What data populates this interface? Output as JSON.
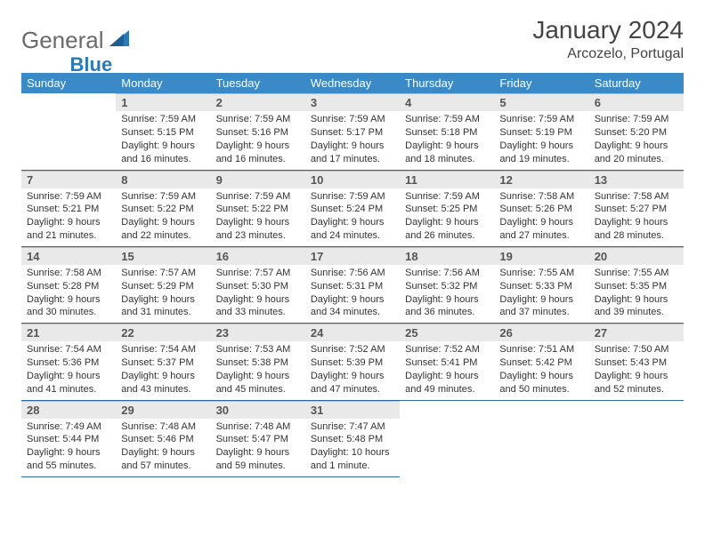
{
  "logo": {
    "text1": "General",
    "text2": "Blue"
  },
  "title": {
    "month": "January 2024",
    "location": "Arcozelo, Portugal"
  },
  "weekdays": [
    "Sunday",
    "Monday",
    "Tuesday",
    "Wednesday",
    "Thursday",
    "Friday",
    "Saturday"
  ],
  "colors": {
    "header_bg": "#3a8ac7",
    "row_border": "#2a6aa0",
    "daynum_bg": "#e9e9e9",
    "logo_blue": "#2a7ab8",
    "logo_gray": "#6a6a6a"
  },
  "weeks": [
    [
      null,
      {
        "n": "1",
        "sunrise": "Sunrise: 7:59 AM",
        "sunset": "Sunset: 5:15 PM",
        "d1": "Daylight: 9 hours",
        "d2": "and 16 minutes."
      },
      {
        "n": "2",
        "sunrise": "Sunrise: 7:59 AM",
        "sunset": "Sunset: 5:16 PM",
        "d1": "Daylight: 9 hours",
        "d2": "and 16 minutes."
      },
      {
        "n": "3",
        "sunrise": "Sunrise: 7:59 AM",
        "sunset": "Sunset: 5:17 PM",
        "d1": "Daylight: 9 hours",
        "d2": "and 17 minutes."
      },
      {
        "n": "4",
        "sunrise": "Sunrise: 7:59 AM",
        "sunset": "Sunset: 5:18 PM",
        "d1": "Daylight: 9 hours",
        "d2": "and 18 minutes."
      },
      {
        "n": "5",
        "sunrise": "Sunrise: 7:59 AM",
        "sunset": "Sunset: 5:19 PM",
        "d1": "Daylight: 9 hours",
        "d2": "and 19 minutes."
      },
      {
        "n": "6",
        "sunrise": "Sunrise: 7:59 AM",
        "sunset": "Sunset: 5:20 PM",
        "d1": "Daylight: 9 hours",
        "d2": "and 20 minutes."
      }
    ],
    [
      {
        "n": "7",
        "sunrise": "Sunrise: 7:59 AM",
        "sunset": "Sunset: 5:21 PM",
        "d1": "Daylight: 9 hours",
        "d2": "and 21 minutes."
      },
      {
        "n": "8",
        "sunrise": "Sunrise: 7:59 AM",
        "sunset": "Sunset: 5:22 PM",
        "d1": "Daylight: 9 hours",
        "d2": "and 22 minutes."
      },
      {
        "n": "9",
        "sunrise": "Sunrise: 7:59 AM",
        "sunset": "Sunset: 5:22 PM",
        "d1": "Daylight: 9 hours",
        "d2": "and 23 minutes."
      },
      {
        "n": "10",
        "sunrise": "Sunrise: 7:59 AM",
        "sunset": "Sunset: 5:24 PM",
        "d1": "Daylight: 9 hours",
        "d2": "and 24 minutes."
      },
      {
        "n": "11",
        "sunrise": "Sunrise: 7:59 AM",
        "sunset": "Sunset: 5:25 PM",
        "d1": "Daylight: 9 hours",
        "d2": "and 26 minutes."
      },
      {
        "n": "12",
        "sunrise": "Sunrise: 7:58 AM",
        "sunset": "Sunset: 5:26 PM",
        "d1": "Daylight: 9 hours",
        "d2": "and 27 minutes."
      },
      {
        "n": "13",
        "sunrise": "Sunrise: 7:58 AM",
        "sunset": "Sunset: 5:27 PM",
        "d1": "Daylight: 9 hours",
        "d2": "and 28 minutes."
      }
    ],
    [
      {
        "n": "14",
        "sunrise": "Sunrise: 7:58 AM",
        "sunset": "Sunset: 5:28 PM",
        "d1": "Daylight: 9 hours",
        "d2": "and 30 minutes."
      },
      {
        "n": "15",
        "sunrise": "Sunrise: 7:57 AM",
        "sunset": "Sunset: 5:29 PM",
        "d1": "Daylight: 9 hours",
        "d2": "and 31 minutes."
      },
      {
        "n": "16",
        "sunrise": "Sunrise: 7:57 AM",
        "sunset": "Sunset: 5:30 PM",
        "d1": "Daylight: 9 hours",
        "d2": "and 33 minutes."
      },
      {
        "n": "17",
        "sunrise": "Sunrise: 7:56 AM",
        "sunset": "Sunset: 5:31 PM",
        "d1": "Daylight: 9 hours",
        "d2": "and 34 minutes."
      },
      {
        "n": "18",
        "sunrise": "Sunrise: 7:56 AM",
        "sunset": "Sunset: 5:32 PM",
        "d1": "Daylight: 9 hours",
        "d2": "and 36 minutes."
      },
      {
        "n": "19",
        "sunrise": "Sunrise: 7:55 AM",
        "sunset": "Sunset: 5:33 PM",
        "d1": "Daylight: 9 hours",
        "d2": "and 37 minutes."
      },
      {
        "n": "20",
        "sunrise": "Sunrise: 7:55 AM",
        "sunset": "Sunset: 5:35 PM",
        "d1": "Daylight: 9 hours",
        "d2": "and 39 minutes."
      }
    ],
    [
      {
        "n": "21",
        "sunrise": "Sunrise: 7:54 AM",
        "sunset": "Sunset: 5:36 PM",
        "d1": "Daylight: 9 hours",
        "d2": "and 41 minutes."
      },
      {
        "n": "22",
        "sunrise": "Sunrise: 7:54 AM",
        "sunset": "Sunset: 5:37 PM",
        "d1": "Daylight: 9 hours",
        "d2": "and 43 minutes."
      },
      {
        "n": "23",
        "sunrise": "Sunrise: 7:53 AM",
        "sunset": "Sunset: 5:38 PM",
        "d1": "Daylight: 9 hours",
        "d2": "and 45 minutes."
      },
      {
        "n": "24",
        "sunrise": "Sunrise: 7:52 AM",
        "sunset": "Sunset: 5:39 PM",
        "d1": "Daylight: 9 hours",
        "d2": "and 47 minutes."
      },
      {
        "n": "25",
        "sunrise": "Sunrise: 7:52 AM",
        "sunset": "Sunset: 5:41 PM",
        "d1": "Daylight: 9 hours",
        "d2": "and 49 minutes."
      },
      {
        "n": "26",
        "sunrise": "Sunrise: 7:51 AM",
        "sunset": "Sunset: 5:42 PM",
        "d1": "Daylight: 9 hours",
        "d2": "and 50 minutes."
      },
      {
        "n": "27",
        "sunrise": "Sunrise: 7:50 AM",
        "sunset": "Sunset: 5:43 PM",
        "d1": "Daylight: 9 hours",
        "d2": "and 52 minutes."
      }
    ],
    [
      {
        "n": "28",
        "sunrise": "Sunrise: 7:49 AM",
        "sunset": "Sunset: 5:44 PM",
        "d1": "Daylight: 9 hours",
        "d2": "and 55 minutes."
      },
      {
        "n": "29",
        "sunrise": "Sunrise: 7:48 AM",
        "sunset": "Sunset: 5:46 PM",
        "d1": "Daylight: 9 hours",
        "d2": "and 57 minutes."
      },
      {
        "n": "30",
        "sunrise": "Sunrise: 7:48 AM",
        "sunset": "Sunset: 5:47 PM",
        "d1": "Daylight: 9 hours",
        "d2": "and 59 minutes."
      },
      {
        "n": "31",
        "sunrise": "Sunrise: 7:47 AM",
        "sunset": "Sunset: 5:48 PM",
        "d1": "Daylight: 10 hours",
        "d2": "and 1 minute."
      },
      null,
      null,
      null
    ]
  ]
}
